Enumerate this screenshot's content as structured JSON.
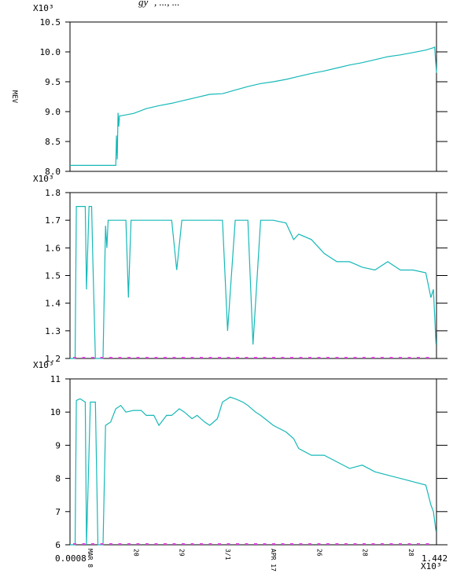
{
  "page": {
    "title_fragment": "gy",
    "title_fragment_tail": ", ..., ..."
  },
  "x_axis": {
    "min_label": "0.0008",
    "max_label": "1.442",
    "exponent": "X10³",
    "date_labels": [
      "MAR 8",
      "20",
      "29",
      "3/1",
      "APR 17",
      "26",
      "28",
      "28"
    ]
  },
  "chart_data": [
    {
      "type": "line",
      "title": "",
      "ylabel": "MEV",
      "exponent": "X10³",
      "ylim": [
        8.0,
        10.5
      ],
      "yticks": [
        8.0,
        8.5,
        9.0,
        9.5,
        10.0,
        10.5
      ],
      "ytick_labels": [
        "8.0",
        "8.5",
        "9.0",
        "9.5",
        "10.0",
        "10.5"
      ],
      "xlim": [
        0,
        1.442
      ],
      "grid": false,
      "color": "#17b8b8",
      "series": [
        {
          "x": [
            0,
            0.18,
            0.183,
            0.186,
            0.189,
            0.192,
            0.195,
            0.2,
            0.25,
            0.3,
            0.35,
            0.4,
            0.45,
            0.5,
            0.55,
            0.6,
            0.65,
            0.7,
            0.75,
            0.8,
            0.85,
            0.9,
            0.95,
            1.0,
            1.05,
            1.1,
            1.15,
            1.2,
            1.25,
            1.3,
            1.35,
            1.4,
            1.43,
            1.435,
            1.442
          ],
          "values": [
            8.1,
            8.1,
            8.6,
            8.2,
            8.98,
            8.75,
            8.93,
            8.93,
            8.97,
            9.05,
            9.1,
            9.14,
            9.19,
            9.24,
            9.29,
            9.3,
            9.36,
            9.42,
            9.47,
            9.5,
            9.54,
            9.59,
            9.64,
            9.68,
            9.73,
            9.78,
            9.82,
            9.87,
            9.92,
            9.95,
            9.99,
            10.03,
            10.07,
            10.08,
            9.65
          ]
        }
      ]
    },
    {
      "type": "line",
      "title": "",
      "ylabel": "",
      "exponent": "X10³",
      "ylim": [
        1.2,
        1.8
      ],
      "yticks": [
        1.2,
        1.3,
        1.4,
        1.5,
        1.6,
        1.7,
        1.8
      ],
      "ytick_labels": [
        "1.2",
        "1.3",
        "1.4",
        "1.5",
        "1.6",
        "1.7",
        "1.8"
      ],
      "xlim": [
        0,
        1.442
      ],
      "grid": false,
      "color": "#17b8b8",
      "series": [
        {
          "x": [
            0,
            0.02,
            0.025,
            0.04,
            0.06,
            0.065,
            0.075,
            0.085,
            0.09,
            0.1,
            0.11,
            0.13,
            0.14,
            0.145,
            0.15,
            0.16,
            0.17,
            0.2,
            0.22,
            0.23,
            0.24,
            0.28,
            0.3,
            0.35,
            0.4,
            0.42,
            0.44,
            0.5,
            0.55,
            0.6,
            0.62,
            0.65,
            0.7,
            0.72,
            0.75,
            0.8,
            0.85,
            0.88,
            0.9,
            0.95,
            0.98,
            1.0,
            1.05,
            1.1,
            1.15,
            1.2,
            1.25,
            1.3,
            1.35,
            1.4,
            1.42,
            1.43,
            1.44
          ],
          "values": [
            1.2,
            1.2,
            1.75,
            1.75,
            1.75,
            1.45,
            1.75,
            1.75,
            1.55,
            1.2,
            1.2,
            1.2,
            1.68,
            1.6,
            1.7,
            1.7,
            1.7,
            1.7,
            1.7,
            1.42,
            1.7,
            1.7,
            1.7,
            1.7,
            1.7,
            1.52,
            1.7,
            1.7,
            1.7,
            1.7,
            1.3,
            1.7,
            1.7,
            1.25,
            1.7,
            1.7,
            1.69,
            1.63,
            1.65,
            1.63,
            1.6,
            1.58,
            1.55,
            1.55,
            1.53,
            1.52,
            1.55,
            1.52,
            1.52,
            1.51,
            1.42,
            1.45,
            1.25
          ]
        }
      ]
    },
    {
      "type": "line",
      "title": "",
      "ylabel": "",
      "exponent": "X10³",
      "ylim": [
        6,
        11
      ],
      "yticks": [
        6,
        7,
        8,
        9,
        10,
        11
      ],
      "ytick_labels": [
        "6",
        "7",
        "8",
        "9",
        "10",
        "11"
      ],
      "xlim": [
        0,
        1.442
      ],
      "grid": false,
      "color": "#17b8b8",
      "series": [
        {
          "x": [
            0,
            0.02,
            0.025,
            0.04,
            0.06,
            0.065,
            0.08,
            0.1,
            0.11,
            0.13,
            0.14,
            0.16,
            0.18,
            0.2,
            0.22,
            0.25,
            0.28,
            0.3,
            0.33,
            0.35,
            0.38,
            0.4,
            0.43,
            0.45,
            0.48,
            0.5,
            0.53,
            0.55,
            0.58,
            0.6,
            0.63,
            0.65,
            0.68,
            0.7,
            0.73,
            0.75,
            0.8,
            0.85,
            0.88,
            0.9,
            0.95,
            1.0,
            1.05,
            1.1,
            1.15,
            1.2,
            1.25,
            1.3,
            1.35,
            1.4,
            1.42,
            1.43,
            1.44
          ],
          "values": [
            6.0,
            6.0,
            10.35,
            10.4,
            10.3,
            6.0,
            10.3,
            10.3,
            6.0,
            6.0,
            9.6,
            9.7,
            10.1,
            10.2,
            10.0,
            10.05,
            10.05,
            9.9,
            9.9,
            9.6,
            9.9,
            9.9,
            10.1,
            10.0,
            9.8,
            9.9,
            9.7,
            9.6,
            9.8,
            10.3,
            10.45,
            10.4,
            10.3,
            10.2,
            10.0,
            9.9,
            9.6,
            9.4,
            9.2,
            8.9,
            8.7,
            8.7,
            8.5,
            8.3,
            8.4,
            8.2,
            8.1,
            8.0,
            7.9,
            7.8,
            7.2,
            7.0,
            6.4
          ]
        }
      ]
    }
  ]
}
